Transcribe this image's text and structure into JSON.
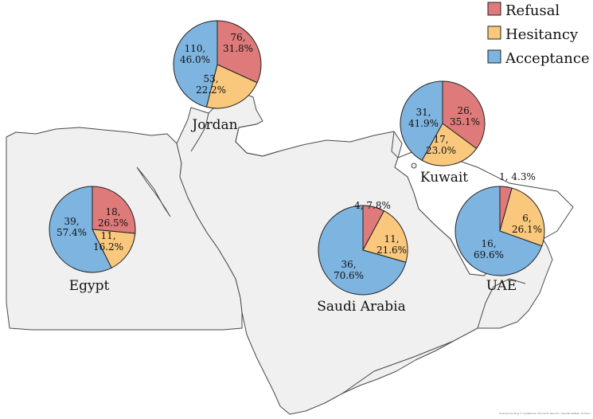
{
  "legend": {
    "items": [
      {
        "label": "Refusal",
        "color": "#de7a7a"
      },
      {
        "label": "Hesitancy",
        "color": "#f9c87d"
      },
      {
        "label": "Acceptance",
        "color": "#7eb4e0"
      }
    ]
  },
  "colors": {
    "land": "#f0f0f0",
    "outline": "#4a4a4a"
  },
  "credit": "Powered by Bing © GeoNames, Microsoft, Navinfo, OpenStreetMap, TomTom",
  "chart_data": [
    {
      "type": "pie",
      "country": "Jordan",
      "slices": [
        {
          "category": "Refusal",
          "count": 76,
          "percent": "31.8%"
        },
        {
          "category": "Hesitancy",
          "count": 53,
          "percent": "22.2%"
        },
        {
          "category": "Acceptance",
          "count": 110,
          "percent": "46.0%"
        }
      ]
    },
    {
      "type": "pie",
      "country": "Kuwait",
      "slices": [
        {
          "category": "Refusal",
          "count": 26,
          "percent": "35.1%"
        },
        {
          "category": "Hesitancy",
          "count": 17,
          "percent": "23.0%"
        },
        {
          "category": "Acceptance",
          "count": 31,
          "percent": "41.9%"
        }
      ]
    },
    {
      "type": "pie",
      "country": "Egypt",
      "slices": [
        {
          "category": "Refusal",
          "count": 18,
          "percent": "26.5%"
        },
        {
          "category": "Hesitancy",
          "count": 11,
          "percent": "16.2%"
        },
        {
          "category": "Acceptance",
          "count": 39,
          "percent": "57.4%"
        }
      ]
    },
    {
      "type": "pie",
      "country": "Saudi Arabia",
      "slices": [
        {
          "category": "Refusal",
          "count": 4,
          "percent": "7.8%"
        },
        {
          "category": "Hesitancy",
          "count": 11,
          "percent": "21.6%"
        },
        {
          "category": "Acceptance",
          "count": 36,
          "percent": "70.6%"
        }
      ]
    },
    {
      "type": "pie",
      "country": "UAE",
      "slices": [
        {
          "category": "Refusal",
          "count": 1,
          "percent": "4.3%"
        },
        {
          "category": "Hesitancy",
          "count": 6,
          "percent": "26.1%"
        },
        {
          "category": "Acceptance",
          "count": 16,
          "percent": "69.6%"
        }
      ]
    }
  ]
}
